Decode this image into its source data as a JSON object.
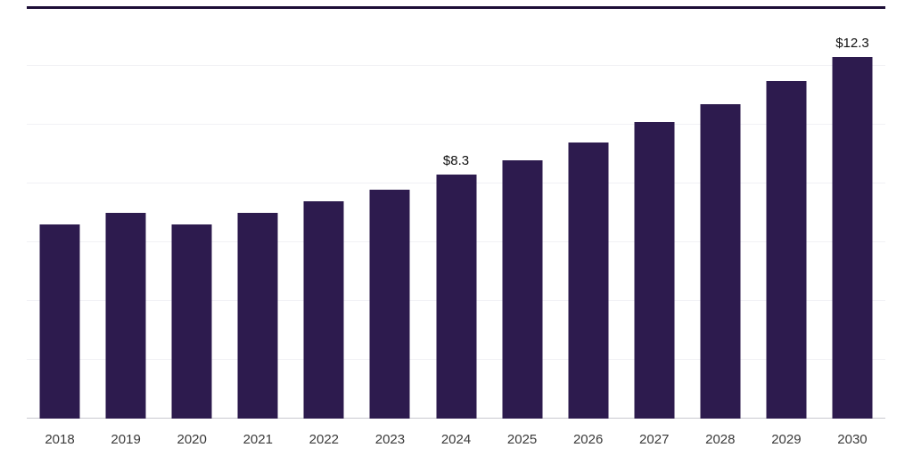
{
  "colors": {
    "bar": "#2d1b4e",
    "top_border": "#1c0d36",
    "gridline": "#f1f1f5",
    "baseline": "#c9c9cf",
    "label_text": "#111111",
    "axis_text": "#3a3a3a"
  },
  "chart_data": {
    "type": "bar",
    "categories": [
      "2018",
      "2019",
      "2020",
      "2021",
      "2022",
      "2023",
      "2024",
      "2025",
      "2026",
      "2027",
      "2028",
      "2029",
      "2030"
    ],
    "values": [
      6.6,
      7.0,
      6.6,
      7.0,
      7.4,
      7.8,
      8.3,
      8.8,
      9.4,
      10.1,
      10.7,
      11.5,
      12.3
    ],
    "data_labels": [
      "",
      "",
      "",
      "",
      "",
      "",
      "$8.3",
      "",
      "",
      "",
      "",
      "",
      "$12.3"
    ],
    "xlabel": "",
    "ylabel": "",
    "ylim": [
      0,
      14
    ],
    "gridline_values": [
      2,
      4,
      6,
      8,
      10,
      12
    ],
    "grid": "horizontal-faint",
    "legend": "none",
    "bar_color": "#2d1b4e"
  }
}
